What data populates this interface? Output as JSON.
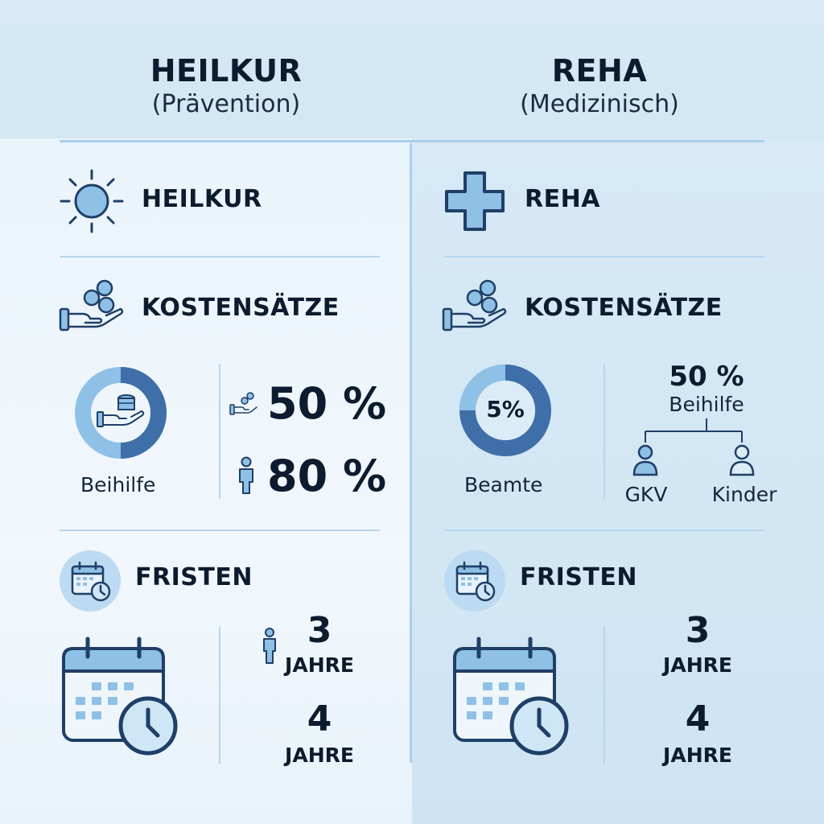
{
  "left": {
    "header_title": "HEILKUR",
    "header_subtitle": "(Prävention)",
    "section_heilkur": "HEILKUR",
    "section_costs": "KOSTENSÄTZE",
    "donut_label": "Beihilfe",
    "rate_1": "50 %",
    "rate_2": "80 %",
    "section_deadlines": "FRISTEN",
    "deadline_1_value": "3",
    "deadline_1_unit": "JAHRE",
    "deadline_2_value": "4",
    "deadline_2_unit": "JAHRE"
  },
  "right": {
    "header_title": "REHA",
    "header_subtitle": "(Medizinisch)",
    "section_reha": "REHA",
    "section_costs": "KOSTENSÄTZE",
    "donut_value": "5%",
    "donut_label": "Beamte",
    "tree_value": "50 %",
    "tree_label": "Beihilfe",
    "tree_child_1": "GKV",
    "tree_child_2": "Kinder",
    "section_deadlines": "FRISTEN",
    "deadline_1_value": "3",
    "deadline_1_unit": "JAHRE",
    "deadline_2_value": "4",
    "deadline_2_unit": "JAHRE"
  },
  "colors": {
    "dark_blue": "#1f3f66",
    "mid_blue": "#3f6fa8",
    "light_blue": "#8fc0e6",
    "pale_blue": "#cfe6f7"
  },
  "icons": [
    "sun-icon",
    "medical-cross-icon",
    "hand-coins-icon",
    "person-icon",
    "calendar-clock-icon"
  ]
}
